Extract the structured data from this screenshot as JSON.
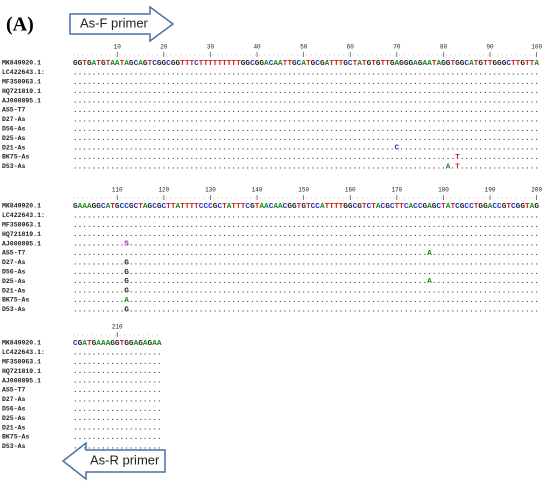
{
  "panel_label": "(A)",
  "forward_primer": "As-F primer",
  "reverse_primer": "As-R primer",
  "blocks": [
    {
      "ruler": [
        10,
        20,
        30,
        40,
        50,
        60,
        70,
        80,
        90,
        100
      ],
      "rows": [
        {
          "name": "MK849920.1",
          "seq": "GGTGATGTAATAGCAGTCGGCGGTTTCTTTTTTTTTGGCGGACAATTGCATGCGATTTGCTATGTGTTGAGGGAGAATAGGTGGCATGTTGGGCTTGTTA"
        },
        {
          "name": "LC422643.1:",
          "seq": "...................................................................................................."
        },
        {
          "name": "MF358963.1",
          "seq": "...................................................................................................."
        },
        {
          "name": "HQ721819.1",
          "seq": "...................................................................................................."
        },
        {
          "name": "AJ000895.1",
          "seq": "...................................................................................................."
        },
        {
          "name": "AS5-T7",
          "seq": "...................................................................................................."
        },
        {
          "name": "D27-As",
          "seq": "...................................................................................................."
        },
        {
          "name": "D56-As",
          "seq": "...................................................................................................."
        },
        {
          "name": "D25-As",
          "seq": "...................................................................................................."
        },
        {
          "name": "D21-As",
          "seq": ".....................................................................C.............................."
        },
        {
          "name": "BK75-As",
          "seq": "..................................................................................T................."
        },
        {
          "name": "D53-As",
          "seq": "................................................................................A.T................."
        }
      ]
    },
    {
      "ruler": [
        110,
        120,
        130,
        140,
        150,
        160,
        170,
        180,
        190,
        200
      ],
      "rows": [
        {
          "name": "MK849920.1",
          "seq": "GAAAGGCATGCCGCTAGCGCTTATTTTCCCGCTATTTCGTAACAACGGTGTCCATTTTGGCGTCTACGCTTCACCGAGCTATCGCCTGGACCGTCGGTAG"
        },
        {
          "name": "LC422643.1:",
          "seq": "...................................................................................................."
        },
        {
          "name": "MF358963.1",
          "seq": "...................................................................................................."
        },
        {
          "name": "HQ721819.1",
          "seq": "...................................................................................................."
        },
        {
          "name": "AJ000895.1",
          "seq": "...........S........................................................................................"
        },
        {
          "name": "AS5-T7",
          "seq": "............................................................................A......................."
        },
        {
          "name": "D27-As",
          "seq": "...........G........................................................................................"
        },
        {
          "name": "D56-As",
          "seq": "...........G........................................................................................"
        },
        {
          "name": "D25-As",
          "seq": "...........G................................................................A......................."
        },
        {
          "name": "D21-As",
          "seq": "...........G........................................................................................"
        },
        {
          "name": "BK75-As",
          "seq": "...........A........................................................................................"
        },
        {
          "name": "D53-As",
          "seq": "...........G........................................................................................"
        }
      ]
    },
    {
      "ruler": [
        210
      ],
      "rows": [
        {
          "name": "MK849920.1",
          "seq": "CGATGAAAGGTGGAGAGAA"
        },
        {
          "name": "LC422643.1:",
          "seq": "..................."
        },
        {
          "name": "MF358963.1",
          "seq": "..................."
        },
        {
          "name": "HQ721819.1",
          "seq": "..................."
        },
        {
          "name": "AJ000895.1",
          "seq": "..................."
        },
        {
          "name": "AS5-T7",
          "seq": "..................."
        },
        {
          "name": "D27-As",
          "seq": "..................."
        },
        {
          "name": "D56-As",
          "seq": "..................."
        },
        {
          "name": "D25-As",
          "seq": "..................."
        },
        {
          "name": "D21-As",
          "seq": "..................."
        },
        {
          "name": "BK75-As",
          "seq": "..................."
        },
        {
          "name": "D53-As",
          "seq": "..................."
        }
      ]
    }
  ]
}
